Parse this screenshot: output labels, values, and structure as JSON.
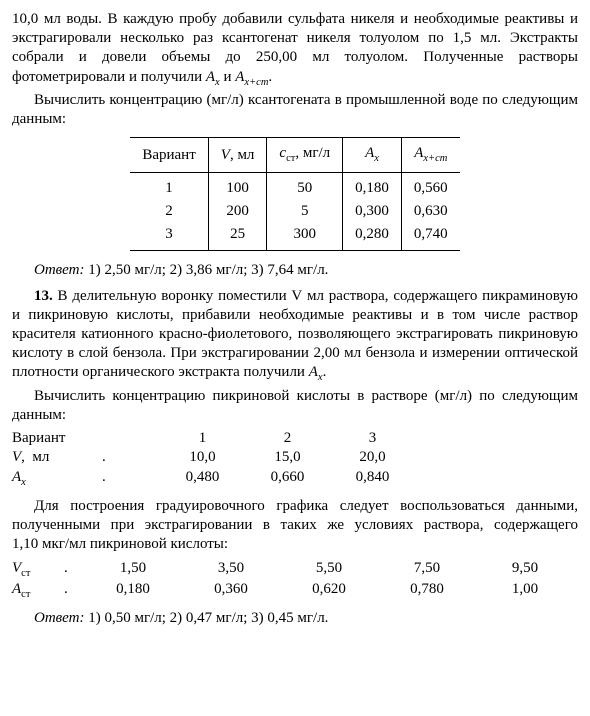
{
  "paragraphs": {
    "p1": "10,0 мл воды. В каждую пробу добавили сульфата никеля и необходимые реактивы и экстрагировали несколько раз ксантогенат никеля толуолом по 1,5 мл. Экстракты собрали и довели объемы до 250,00 мл толуолом. Полученные растворы фотометрировали и получили ",
    "p1_Ax": "A",
    "p1_x": "x",
    "p1_and": " и ",
    "p1_Axst": "A",
    "p1_xst": "x+ст",
    "p1_end": ".",
    "p2": "Вычислить концентрацию (мг/л) ксантогената в промышленной воде по следующим данным:"
  },
  "table1": {
    "headers": {
      "h1": "Вариант",
      "h2_pre": "V",
      "h2_post": ", мл",
      "h3_pre": "c",
      "h3_sub": "ст",
      "h3_post": ", мг/л",
      "h4_pre": "A",
      "h4_sub": "x",
      "h5_pre": "A",
      "h5_sub": "x+ст"
    },
    "rows": [
      {
        "n": "1",
        "v": "100",
        "c": "50",
        "ax": "0,180",
        "axst": "0,560"
      },
      {
        "n": "2",
        "v": "200",
        "c": "5",
        "ax": "0,300",
        "axst": "0,630"
      },
      {
        "n": "3",
        "v": "25",
        "c": "300",
        "ax": "0,280",
        "axst": "0,740"
      }
    ]
  },
  "answer1_label": "Ответ:",
  "answer1": " 1) 2,50 мг/л; 2) 3,86 мг/л; 3) 7,64 мг/л.",
  "problem13_num": "13.",
  "problem13": " В делительную воронку поместили V мл раствора, содержащего пикраминовую и пикриновую кислоты, прибавили необходимые реактивы и в том числе раствор красителя катионного красно-фиолетового, позволяющего экстрагировать пикриновую кислоту в слой бензола. При экстрагировании 2,00 мл бензола и измерении оптической плотности органического экстракта получили ",
  "problem13_Ax": "A",
  "problem13_x": "x",
  "problem13_end": ".",
  "p3": "Вычислить концентрацию пикриновой кислоты в растворе (мг/л) по следующим данным:",
  "table2": {
    "r1_lab": "Вариант",
    "r2_pre": "V",
    "r2_post": ",  мл",
    "r3_pre": "A",
    "r3_sub": "x",
    "dots1": "",
    "dots2": " .",
    "dots3": "  .",
    "r1": [
      "1",
      "2",
      "3"
    ],
    "r2": [
      "10,0",
      "15,0",
      "20,0"
    ],
    "r3": [
      "0,480",
      "0,660",
      "0,840"
    ]
  },
  "p4": "Для построения градуировочного графика следует воспользоваться данными, полученными при экстрагировании в таких же условиях раствора, содержащего 1,10 мкг/мл пикриновой кислоты:",
  "table3": {
    "r1_pre": "V",
    "r1_sub": "ст",
    "r1_post": "",
    "r2_pre": "A",
    "r2_sub": "ст",
    "r2_post": "",
    "dots1": " .",
    "dots2": " .",
    "r1": [
      "1,50",
      "3,50",
      "5,50",
      "7,50",
      "9,50"
    ],
    "r2": [
      "0,180",
      "0,360",
      "0,620",
      "0,780",
      "1,00"
    ]
  },
  "answer2_label": "Ответ:",
  "answer2": " 1) 0,50 мг/л; 2) 0,47 мг/л; 3) 0,45 мг/л."
}
